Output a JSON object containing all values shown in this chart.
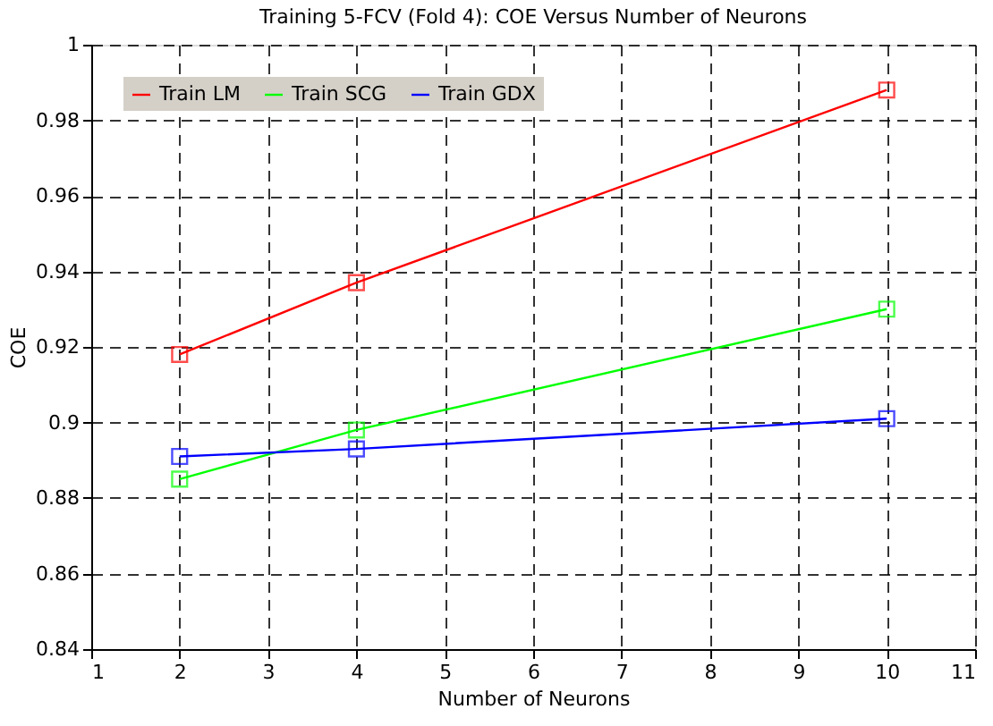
{
  "chart_data": {
    "type": "line",
    "title": "Training 5-FCV (Fold 4): COE Versus Number of Neurons",
    "xlabel": "Number of Neurons",
    "ylabel": "COE",
    "x": [
      2,
      4,
      10
    ],
    "series": [
      {
        "name": "Train LM",
        "color": "#ff0000",
        "values": [
          0.918,
          0.937,
          0.988
        ]
      },
      {
        "name": "Train SCG",
        "color": "#00ff00",
        "values": [
          0.885,
          0.898,
          0.93
        ]
      },
      {
        "name": "Train GDX",
        "color": "#0000ff",
        "values": [
          0.891,
          0.893,
          0.901
        ]
      }
    ],
    "xlim": [
      1,
      11
    ],
    "xticks": [
      1,
      2,
      3,
      4,
      5,
      6,
      7,
      8,
      9,
      10,
      11
    ],
    "ylim": [
      0.84,
      1
    ],
    "yticks": [
      0.84,
      0.86,
      0.88,
      0.9,
      0.92,
      0.94,
      0.96,
      0.98,
      1
    ],
    "grid": true,
    "legend": "top left",
    "marker": "square",
    "line_style": "solid"
  }
}
